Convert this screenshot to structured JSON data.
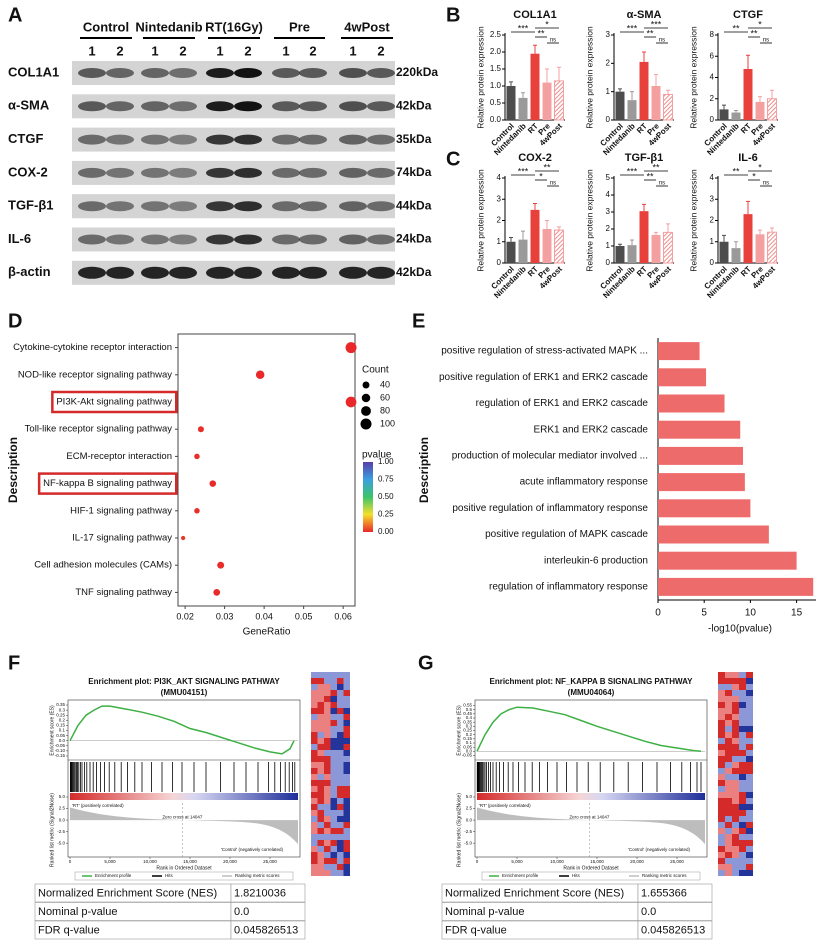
{
  "panels": {
    "a": "A",
    "b": "B",
    "c": "C",
    "d": "D",
    "e": "E",
    "f": "F",
    "g": "G"
  },
  "blot": {
    "groups": [
      "Control",
      "Nintedanib",
      "RT(16Gy)",
      "Pre",
      "4wPost"
    ],
    "lanes": [
      "1",
      "2"
    ],
    "rows": [
      {
        "protein": "COL1A1",
        "size": "220kDa"
      },
      {
        "protein": "α-SMA",
        "size": "42kDa"
      },
      {
        "protein": "CTGF",
        "size": "35kDa"
      },
      {
        "protein": "COX-2",
        "size": "74kDa"
      },
      {
        "protein": "TGF-β1",
        "size": "44kDa"
      },
      {
        "protein": "IL-6",
        "size": "24kDa"
      },
      {
        "protein": "β-actin",
        "size": "42kDa"
      }
    ]
  },
  "chart_data": [
    {
      "type": "bar",
      "title": "COL1A1",
      "ylabel": "Relative protein expression",
      "categories": [
        "Control",
        "Nintedanib",
        "RT",
        "Pre",
        "4wPost"
      ],
      "values": [
        1.0,
        0.65,
        1.95,
        1.1,
        1.15
      ],
      "errors": [
        0.12,
        0.15,
        0.25,
        0.4,
        0.4
      ],
      "colors": [
        "#4d4d4d",
        "#9a9a9a",
        "#e8413c",
        "#f4a0a0",
        "#f4a0a0"
      ],
      "hatched": [
        false,
        false,
        false,
        false,
        true
      ],
      "ylim": [
        0,
        2.5
      ],
      "yticks": [
        {
          "value": 0,
          "label": "0.0"
        },
        0.5,
        {
          "value": 1,
          "label": "1.0"
        },
        1.5,
        {
          "value": 2,
          "label": "2.0"
        },
        2.5
      ],
      "annotations": [
        "***",
        "*",
        "**",
        "ns"
      ]
    },
    {
      "type": "bar",
      "title": "α-SMA",
      "ylabel": "Relative protein expression",
      "categories": [
        "Control",
        "Nintedanib",
        "RT",
        "Pre",
        "4wPost"
      ],
      "values": [
        1.0,
        0.7,
        2.05,
        1.2,
        0.9
      ],
      "errors": [
        0.1,
        0.3,
        0.35,
        0.4,
        0.15
      ],
      "colors": [
        "#4d4d4d",
        "#9a9a9a",
        "#e8413c",
        "#f4a0a0",
        "#f4a0a0"
      ],
      "hatched": [
        false,
        false,
        false,
        false,
        true
      ],
      "ylim": [
        0,
        3
      ],
      "yticks": [
        0,
        1,
        2,
        3
      ],
      "annotations": [
        "***",
        "***",
        "**",
        "ns"
      ]
    },
    {
      "type": "bar",
      "title": "CTGF",
      "ylabel": "Relative protein expression",
      "categories": [
        "Control",
        "Nintedanib",
        "RT",
        "Pre",
        "4wPost"
      ],
      "values": [
        1.0,
        0.7,
        4.8,
        1.7,
        2.0
      ],
      "errors": [
        0.4,
        0.2,
        1.3,
        0.5,
        0.8
      ],
      "colors": [
        "#4d4d4d",
        "#9a9a9a",
        "#e8413c",
        "#f4a0a0",
        "#f4a0a0"
      ],
      "hatched": [
        false,
        false,
        false,
        false,
        true
      ],
      "ylim": [
        0,
        8
      ],
      "yticks": [
        0,
        2,
        4,
        6,
        8
      ],
      "annotations": [
        "**",
        "*",
        "**",
        "ns"
      ]
    },
    {
      "type": "bar",
      "title": "COX-2",
      "ylabel": "Relative protein expression",
      "categories": [
        "Control",
        "Nintedanib",
        "RT",
        "Pre",
        "4wPost"
      ],
      "values": [
        1.0,
        1.1,
        2.5,
        1.6,
        1.55
      ],
      "errors": [
        0.2,
        0.4,
        0.3,
        0.4,
        0.15
      ],
      "colors": [
        "#4d4d4d",
        "#9a9a9a",
        "#e8413c",
        "#f4a0a0",
        "#f4a0a0"
      ],
      "hatched": [
        false,
        false,
        false,
        false,
        true
      ],
      "ylim": [
        0,
        4
      ],
      "yticks": [
        0,
        1,
        2,
        3,
        4
      ],
      "annotations": [
        "***",
        "**",
        "*",
        "ns"
      ]
    },
    {
      "type": "bar",
      "title": "TGF-β1",
      "ylabel": "Relative protein expression",
      "categories": [
        "Control",
        "Nintedanib",
        "RT",
        "Pre",
        "4wPost"
      ],
      "values": [
        1.0,
        1.05,
        3.05,
        1.65,
        1.8
      ],
      "errors": [
        0.1,
        0.3,
        0.4,
        0.15,
        0.5
      ],
      "colors": [
        "#4d4d4d",
        "#9a9a9a",
        "#e8413c",
        "#f4a0a0",
        "#f4a0a0"
      ],
      "hatched": [
        false,
        false,
        false,
        false,
        true
      ],
      "ylim": [
        0,
        5
      ],
      "yticks": [
        0,
        1,
        2,
        3,
        4,
        5
      ],
      "annotations": [
        "***",
        "**",
        "**",
        "ns"
      ]
    },
    {
      "type": "bar",
      "title": "IL-6",
      "ylabel": "Relative protein expression",
      "categories": [
        "Control",
        "Nintedanib",
        "RT",
        "Pre",
        "4wPost"
      ],
      "values": [
        1.0,
        0.7,
        2.3,
        1.35,
        1.45
      ],
      "errors": [
        0.3,
        0.3,
        0.6,
        0.2,
        0.2
      ],
      "colors": [
        "#4d4d4d",
        "#9a9a9a",
        "#e8413c",
        "#f4a0a0",
        "#f4a0a0"
      ],
      "hatched": [
        false,
        false,
        false,
        false,
        true
      ],
      "ylim": [
        0,
        4
      ],
      "yticks": [
        0,
        1,
        2,
        3,
        4
      ],
      "annotations": [
        "**",
        "*",
        "*",
        "ns"
      ]
    },
    {
      "type": "dot",
      "ylabel": "Description",
      "xlabel": "GeneRatio",
      "categories": [
        "Cytokine-cytokine receptor interaction",
        "NOD-like receptor signaling pathway",
        "PI3K-Akt signaling pathway",
        "Toll-like receptor signaling pathway",
        "ECM-receptor interaction",
        "NF-kappa B signaling pathway",
        "HIF-1 signaling pathway",
        "IL-17 signaling pathway",
        "Cell adhesion molecules (CAMs)",
        "TNF signaling pathway"
      ],
      "values": [
        0.062,
        0.039,
        0.062,
        0.024,
        0.023,
        0.027,
        0.023,
        0.0195,
        0.029,
        0.028
      ],
      "sizes": [
        100,
        60,
        95,
        30,
        25,
        35,
        25,
        15,
        40,
        38
      ],
      "pvalues": [
        0.001,
        0.005,
        0.002,
        0.01,
        0.01,
        0.005,
        0.01,
        0.02,
        0.01,
        0.005
      ],
      "xlim": [
        0.0182,
        0.063
      ],
      "xticks": [
        0.02,
        0.03,
        0.04,
        0.05,
        0.06
      ],
      "size_title": "Count",
      "size_legend": [
        40,
        60,
        80,
        100
      ],
      "color_title": "pvalue",
      "clim": [
        0,
        1
      ],
      "color_ticks": [
        {
          "value": 1,
          "label": "1.00"
        },
        0.75,
        {
          "value": 0.5,
          "label": "0.50"
        },
        0.25,
        {
          "value": 0,
          "label": "0.00"
        }
      ],
      "highlight": [
        2,
        5
      ],
      "highlight_color": "#d42a2a"
    },
    {
      "type": "barh",
      "ylabel": "Description",
      "xlabel": "-log10(pvalue)",
      "categories": [
        "positive regulation of stress-activated MAPK ...",
        "positive regulation of ERK1 and ERK2 cascade",
        "regulation of ERK1 and ERK2 cascade",
        "ERK1 and ERK2 cascade",
        "production of molecular mediator involved ...",
        "acute inflammatory response",
        "positive regulation of inflammatory response",
        "positive regulation of MAPK cascade",
        "interleukin-6 production",
        "regulation of inflammatory response"
      ],
      "values": [
        4.5,
        5.2,
        7.2,
        8.9,
        9.2,
        9.4,
        10.0,
        12.0,
        15.0,
        16.8
      ],
      "color": "#ee6b6b",
      "xlim": [
        0,
        17.1
      ],
      "xticks": [
        0,
        5,
        10,
        15
      ]
    },
    {
      "type": "gsea",
      "title": "Enrichment plot: PI3K_AKT SIGNALING PATHWAY",
      "subtitle": "(MMU04151)",
      "ylabel": "Enrichment score (ES)",
      "metric_ylabel": "Ranked list metric (Signal2Noise)",
      "xlabel": "Rank in Ordered Dataset",
      "x": [
        0,
        1000,
        2000,
        3000,
        4000,
        5000,
        7000,
        9000,
        11000,
        13000,
        15000,
        17000,
        19000,
        21000,
        23000,
        25000,
        26500,
        27500,
        28000
      ],
      "values": [
        0,
        0.15,
        0.25,
        0.3,
        0.34,
        0.34,
        0.31,
        0.28,
        0.24,
        0.19,
        0.12,
        0.08,
        0.03,
        -0.02,
        -0.07,
        -0.11,
        -0.13,
        -0.08,
        0
      ],
      "hits": [
        50,
        120,
        200,
        310,
        400,
        520,
        650,
        800,
        950,
        1100,
        1300,
        1500,
        1800,
        2100,
        2500,
        2900,
        3300,
        3800,
        4300,
        4900,
        5600,
        6400,
        7200,
        8100,
        9000,
        10200,
        11500,
        12800,
        14000,
        15500,
        17000,
        18800,
        20500,
        22000,
        23500,
        24800,
        25600,
        26300,
        26900,
        27400,
        27800,
        28100
      ],
      "color": "#3cb043",
      "xlim": [
        0,
        28500
      ],
      "xticks": [
        0,
        {
          "value": 5000,
          "label": "5,000"
        },
        {
          "value": 10000,
          "label": "10,000"
        },
        {
          "value": 15000,
          "label": "15,000"
        },
        {
          "value": 20000,
          "label": "20,000"
        },
        {
          "value": 25000,
          "label": "25,000"
        }
      ],
      "ylim": [
        -0.17,
        0.37
      ],
      "yticks": [
        0.35,
        0.3,
        0.25,
        0.2,
        0.15,
        0.1,
        0.05,
        {
          "value": 0,
          "label": "0.0"
        },
        -0.05,
        {
          "value": -0.1,
          "label": "-0.10"
        },
        -0.15
      ],
      "metric_ylim": [
        -8,
        5
      ],
      "metric_yticks": [
        {
          "value": 5,
          "label": "5.0"
        },
        2.5,
        {
          "value": 0,
          "label": "0.0"
        },
        -2.5,
        {
          "value": -5,
          "label": "-5.0"
        }
      ],
      "zero_cross": 14047,
      "pos_label": "'RT' (positively correlated)",
      "zero_label": "Zero cross at 14047",
      "neg_label": "'Control' (negatively correlated)",
      "legend": [
        "Enrichment profile",
        "Hits",
        "Ranking metric scores"
      ],
      "table": [
        [
          "Normalized Enrichment Score (NES)",
          "1.8210036"
        ],
        [
          "Nominal p-value",
          "0.0"
        ],
        [
          "FDR q-value",
          "0.045826513"
        ]
      ]
    },
    {
      "type": "gsea",
      "title": "Enrichment plot: NF_KAPPA B SIGNALING PATHWAY",
      "subtitle": "(MMU04064)",
      "ylabel": "Enrichment score (ES)",
      "metric_ylabel": "Ranked list metric (Signal2Noise)",
      "xlabel": "Rank in Ordered Dataset",
      "x": [
        0,
        1000,
        2000,
        3000,
        4000,
        5000,
        7000,
        9000,
        11000,
        13000,
        15000,
        17000,
        19000,
        21000,
        23000,
        25000,
        27000,
        28000
      ],
      "values": [
        0,
        0.2,
        0.35,
        0.45,
        0.5,
        0.53,
        0.52,
        0.48,
        0.44,
        0.37,
        0.3,
        0.24,
        0.18,
        0.12,
        0.07,
        0.04,
        0.01,
        0
      ],
      "hits": [
        30,
        90,
        160,
        240,
        330,
        430,
        560,
        700,
        850,
        1000,
        1200,
        1450,
        1700,
        2000,
        2400,
        2800,
        3300,
        3900,
        4500,
        5200,
        6000,
        6900,
        7800,
        8800,
        10000,
        11200,
        12500,
        13900,
        15400,
        17100,
        18900,
        20700,
        22500,
        24200,
        25600,
        26700,
        27500,
        28000
      ],
      "color": "#3cb043",
      "xlim": [
        0,
        28500
      ],
      "xticks": [
        0,
        {
          "value": 5000,
          "label": "5,000"
        },
        {
          "value": 10000,
          "label": "10,000"
        },
        {
          "value": 15000,
          "label": "15,000"
        },
        {
          "value": 20000,
          "label": "20,000"
        },
        {
          "value": 25000,
          "label": "25,000"
        }
      ],
      "ylim": [
        -0.08,
        0.58
      ],
      "yticks": [
        0.55,
        0.5,
        0.45,
        0.4,
        0.35,
        0.3,
        0.25,
        0.2,
        0.15,
        0.1,
        0.05,
        {
          "value": 0,
          "label": "0.0"
        },
        -0.05
      ],
      "metric_ylim": [
        -8,
        5
      ],
      "metric_yticks": [
        {
          "value": 5,
          "label": "5.0"
        },
        2.5,
        {
          "value": 0,
          "label": "0.0"
        },
        -2.5,
        {
          "value": -5,
          "label": "-5.0"
        }
      ],
      "zero_cross": 14047,
      "pos_label": "'RT' (positively correlated)",
      "zero_label": "Zero cross at 14047",
      "neg_label": "'Control' (negatively correlated)",
      "legend": [
        "Enrichment profile",
        "Hits",
        "Ranking metric scores"
      ],
      "table": [
        [
          "Normalized Enrichment Score (NES)",
          "1.655366"
        ],
        [
          "Nominal p-value",
          "0.0"
        ],
        [
          "FDR q-value",
          "0.045826513"
        ]
      ]
    }
  ]
}
